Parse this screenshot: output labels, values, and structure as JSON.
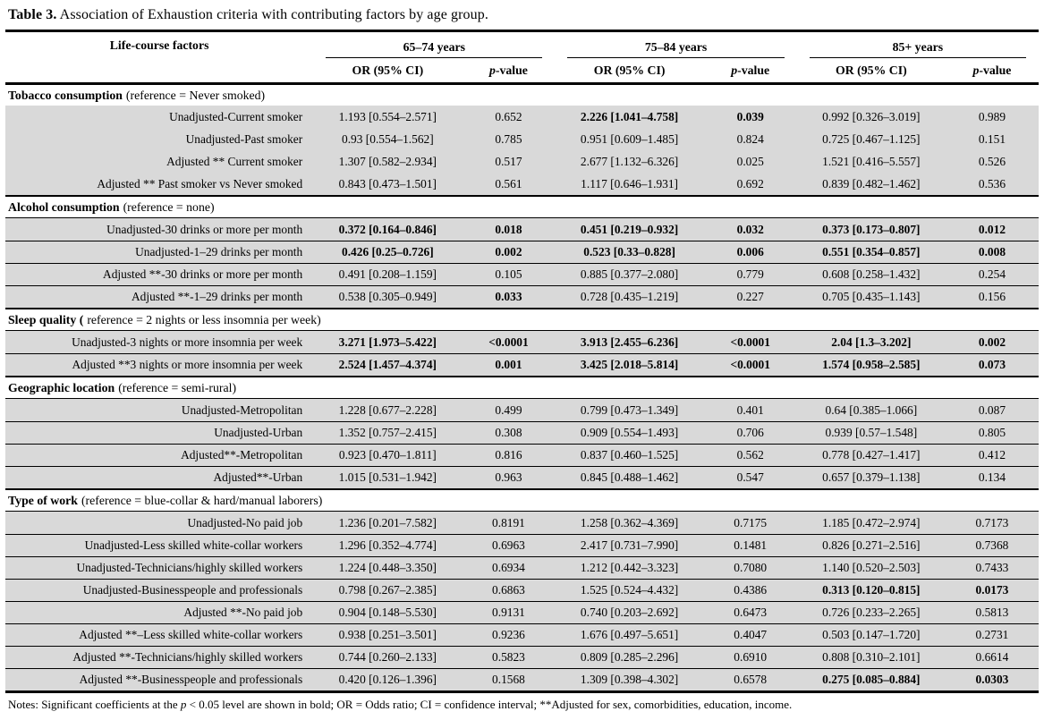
{
  "title": {
    "label": "Table 3.",
    "text": " Association of Exhaustion criteria with contributing factors by age group."
  },
  "header": {
    "factor_col": "Life-course factors",
    "groups": [
      "65–74 years",
      "75–84 years",
      "85+ years"
    ],
    "or_label": "OR (95% CI)",
    "p_italic": "p",
    "p_rest": "-value"
  },
  "sections": [
    {
      "name": "Tobacco consumption",
      "reference": "(reference = Never smoked)",
      "dividers": false,
      "rows": [
        {
          "label": "Unadjusted-Current smoker",
          "cells": [
            {
              "v": "1.193 [0.554–2.571]",
              "bold": false
            },
            {
              "v": "0.652",
              "bold": false
            },
            {
              "v": "2.226 [1.041–4.758]",
              "bold": true
            },
            {
              "v": "0.039",
              "bold": true
            },
            {
              "v": "0.992 [0.326–3.019]",
              "bold": false
            },
            {
              "v": "0.989",
              "bold": false
            }
          ]
        },
        {
          "label": "Unadjusted-Past smoker",
          "cells": [
            {
              "v": "0.93 [0.554–1.562]",
              "bold": false
            },
            {
              "v": "0.785",
              "bold": false
            },
            {
              "v": "0.951 [0.609–1.485]",
              "bold": false
            },
            {
              "v": "0.824",
              "bold": false
            },
            {
              "v": "0.725 [0.467–1.125]",
              "bold": false
            },
            {
              "v": "0.151",
              "bold": false
            }
          ]
        },
        {
          "label": "Adjusted ** Current smoker",
          "cells": [
            {
              "v": "1.307 [0.582–2.934]",
              "bold": false
            },
            {
              "v": "0.517",
              "bold": false
            },
            {
              "v": "2.677 [1.132–6.326]",
              "bold": false
            },
            {
              "v": "0.025",
              "bold": false
            },
            {
              "v": "1.521 [0.416–5.557]",
              "bold": false
            },
            {
              "v": "0.526",
              "bold": false
            }
          ]
        },
        {
          "label": "Adjusted ** Past smoker vs Never smoked",
          "cells": [
            {
              "v": "0.843 [0.473–1.501]",
              "bold": false
            },
            {
              "v": "0.561",
              "bold": false
            },
            {
              "v": "1.117 [0.646–1.931]",
              "bold": false
            },
            {
              "v": "0.692",
              "bold": false
            },
            {
              "v": "0.839 [0.482–1.462]",
              "bold": false
            },
            {
              "v": "0.536",
              "bold": false
            }
          ]
        }
      ]
    },
    {
      "name": "Alcohol consumption",
      "reference": "(reference = none)",
      "dividers": true,
      "rows": [
        {
          "label": "Unadjusted-30 drinks or more per month",
          "cells": [
            {
              "v": "0.372 [0.164–0.846]",
              "bold": true
            },
            {
              "v": "0.018",
              "bold": true
            },
            {
              "v": "0.451 [0.219–0.932]",
              "bold": true
            },
            {
              "v": "0.032",
              "bold": true
            },
            {
              "v": "0.373 [0.173–0.807]",
              "bold": true
            },
            {
              "v": "0.012",
              "bold": true
            }
          ]
        },
        {
          "label": "Unadjusted-1–29 drinks per month",
          "cells": [
            {
              "v": "0.426 [0.25–0.726]",
              "bold": true
            },
            {
              "v": "0.002",
              "bold": true
            },
            {
              "v": "0.523 [0.33–0.828]",
              "bold": true
            },
            {
              "v": "0.006",
              "bold": true
            },
            {
              "v": "0.551 [0.354–0.857]",
              "bold": true
            },
            {
              "v": "0.008",
              "bold": true
            }
          ]
        },
        {
          "label": "Adjusted **-30 drinks or more per month",
          "cells": [
            {
              "v": "0.491 [0.208–1.159]",
              "bold": false
            },
            {
              "v": "0.105",
              "bold": false
            },
            {
              "v": "0.885 [0.377–2.080]",
              "bold": false
            },
            {
              "v": "0.779",
              "bold": false
            },
            {
              "v": "0.608 [0.258–1.432]",
              "bold": false
            },
            {
              "v": "0.254",
              "bold": false
            }
          ]
        },
        {
          "label": "Adjusted **-1–29 drinks per month",
          "cells": [
            {
              "v": "0.538 [0.305–0.949]",
              "bold": false
            },
            {
              "v": "0.033",
              "bold": true
            },
            {
              "v": "0.728 [0.435–1.219]",
              "bold": false
            },
            {
              "v": "0.227",
              "bold": false
            },
            {
              "v": "0.705 [0.435–1.143]",
              "bold": false
            },
            {
              "v": "0.156",
              "bold": false
            }
          ]
        }
      ]
    },
    {
      "name": "Sleep quality (",
      "reference": "reference = 2 nights or less insomnia per week)",
      "dividers": true,
      "rows": [
        {
          "label": "Unadjusted-3 nights or more insomnia per week",
          "cells": [
            {
              "v": "3.271 [1.973–5.422]",
              "bold": true
            },
            {
              "v": "<0.0001",
              "bold": true
            },
            {
              "v": "3.913 [2.455–6.236]",
              "bold": true
            },
            {
              "v": "<0.0001",
              "bold": true
            },
            {
              "v": "2.04 [1.3–3.202]",
              "bold": true
            },
            {
              "v": "0.002",
              "bold": true
            }
          ]
        },
        {
          "label": "Adjusted **3 nights or more insomnia per week",
          "cells": [
            {
              "v": "2.524 [1.457–4.374]",
              "bold": true
            },
            {
              "v": "0.001",
              "bold": true
            },
            {
              "v": "3.425 [2.018–5.814]",
              "bold": true
            },
            {
              "v": "<0.0001",
              "bold": true
            },
            {
              "v": "1.574 [0.958–2.585]",
              "bold": true
            },
            {
              "v": "0.073",
              "bold": true
            }
          ]
        }
      ]
    },
    {
      "name": "Geographic location",
      "reference": "(reference = semi-rural)",
      "dividers": true,
      "rows": [
        {
          "label": "Unadjusted-Metropolitan",
          "cells": [
            {
              "v": "1.228 [0.677–2.228]",
              "bold": false
            },
            {
              "v": "0.499",
              "bold": false
            },
            {
              "v": "0.799 [0.473–1.349]",
              "bold": false
            },
            {
              "v": "0.401",
              "bold": false
            },
            {
              "v": "0.64 [0.385–1.066]",
              "bold": false
            },
            {
              "v": "0.087",
              "bold": false
            }
          ]
        },
        {
          "label": "Unadjusted-Urban",
          "cells": [
            {
              "v": "1.352 [0.757–2.415]",
              "bold": false
            },
            {
              "v": "0.308",
              "bold": false
            },
            {
              "v": "0.909 [0.554–1.493]",
              "bold": false
            },
            {
              "v": "0.706",
              "bold": false
            },
            {
              "v": "0.939 [0.57–1.548]",
              "bold": false
            },
            {
              "v": "0.805",
              "bold": false
            }
          ]
        },
        {
          "label": "Adjusted**-Metropolitan",
          "cells": [
            {
              "v": "0.923 [0.470–1.811]",
              "bold": false
            },
            {
              "v": "0.816",
              "bold": false
            },
            {
              "v": "0.837 [0.460–1.525]",
              "bold": false
            },
            {
              "v": "0.562",
              "bold": false
            },
            {
              "v": "0.778 [0.427–1.417]",
              "bold": false
            },
            {
              "v": "0.412",
              "bold": false
            }
          ]
        },
        {
          "label": "Adjusted**-Urban",
          "cells": [
            {
              "v": "1.015 [0.531–1.942]",
              "bold": false
            },
            {
              "v": "0.963",
              "bold": false
            },
            {
              "v": "0.845 [0.488–1.462]",
              "bold": false
            },
            {
              "v": "0.547",
              "bold": false
            },
            {
              "v": "0.657 [0.379–1.138]",
              "bold": false
            },
            {
              "v": "0.134",
              "bold": false
            }
          ]
        }
      ]
    },
    {
      "name": "Type of work",
      "reference": "(reference = blue-collar & hard/manual laborers)",
      "dividers": true,
      "rows": [
        {
          "label": "Unadjusted-No paid job",
          "cells": [
            {
              "v": "1.236 [0.201–7.582]",
              "bold": false
            },
            {
              "v": "0.8191",
              "bold": false
            },
            {
              "v": "1.258 [0.362–4.369]",
              "bold": false
            },
            {
              "v": "0.7175",
              "bold": false
            },
            {
              "v": "1.185 [0.472–2.974]",
              "bold": false
            },
            {
              "v": "0.7173",
              "bold": false
            }
          ]
        },
        {
          "label": "Unadjusted-Less skilled white-collar workers",
          "cells": [
            {
              "v": "1.296 [0.352–4.774]",
              "bold": false
            },
            {
              "v": "0.6963",
              "bold": false
            },
            {
              "v": "2.417 [0.731–7.990]",
              "bold": false
            },
            {
              "v": "0.1481",
              "bold": false
            },
            {
              "v": "0.826 [0.271–2.516]",
              "bold": false
            },
            {
              "v": "0.7368",
              "bold": false
            }
          ]
        },
        {
          "label": "Unadjusted-Technicians/highly skilled workers",
          "cells": [
            {
              "v": "1.224 [0.448–3.350]",
              "bold": false
            },
            {
              "v": "0.6934",
              "bold": false
            },
            {
              "v": "1.212 [0.442–3.323]",
              "bold": false
            },
            {
              "v": "0.7080",
              "bold": false
            },
            {
              "v": "1.140 [0.520–2.503]",
              "bold": false
            },
            {
              "v": "0.7433",
              "bold": false
            }
          ]
        },
        {
          "label": "Unadjusted-Businesspeople and professionals",
          "cells": [
            {
              "v": "0.798 [0.267–2.385]",
              "bold": false
            },
            {
              "v": "0.6863",
              "bold": false
            },
            {
              "v": "1.525 [0.524–4.432]",
              "bold": false
            },
            {
              "v": "0.4386",
              "bold": false
            },
            {
              "v": "0.313 [0.120–0.815]",
              "bold": true
            },
            {
              "v": "0.0173",
              "bold": true
            }
          ]
        },
        {
          "label": "Adjusted **-No paid job",
          "cells": [
            {
              "v": "0.904 [0.148–5.530]",
              "bold": false
            },
            {
              "v": "0.9131",
              "bold": false
            },
            {
              "v": "0.740 [0.203–2.692]",
              "bold": false
            },
            {
              "v": "0.6473",
              "bold": false
            },
            {
              "v": "0.726 [0.233–2.265]",
              "bold": false
            },
            {
              "v": "0.5813",
              "bold": false
            }
          ]
        },
        {
          "label": "Adjusted **–Less skilled white-collar workers",
          "cells": [
            {
              "v": "0.938 [0.251–3.501]",
              "bold": false
            },
            {
              "v": "0.9236",
              "bold": false
            },
            {
              "v": "1.676 [0.497–5.651]",
              "bold": false
            },
            {
              "v": "0.4047",
              "bold": false
            },
            {
              "v": "0.503 [0.147–1.720]",
              "bold": false
            },
            {
              "v": "0.2731",
              "bold": false
            }
          ]
        },
        {
          "label": "Adjusted **-Technicians/highly skilled workers",
          "cells": [
            {
              "v": "0.744 [0.260–2.133]",
              "bold": false
            },
            {
              "v": "0.5823",
              "bold": false
            },
            {
              "v": "0.809 [0.285–2.296]",
              "bold": false
            },
            {
              "v": "0.6910",
              "bold": false
            },
            {
              "v": "0.808 [0.310–2.101]",
              "bold": false
            },
            {
              "v": "0.6614",
              "bold": false
            }
          ]
        },
        {
          "label": "Adjusted **-Businesspeople and professionals",
          "cells": [
            {
              "v": "0.420 [0.126–1.396]",
              "bold": false
            },
            {
              "v": "0.1568",
              "bold": false
            },
            {
              "v": "1.309 [0.398–4.302]",
              "bold": false
            },
            {
              "v": "0.6578",
              "bold": false
            },
            {
              "v": "0.275 [0.085–0.884]",
              "bold": true
            },
            {
              "v": "0.0303",
              "bold": true
            }
          ]
        }
      ]
    }
  ],
  "notes": {
    "pre": "Notes: Significant coefficients at the ",
    "italic": "p",
    "post": " < 0.05 level are shown in bold; OR = Odds ratio; CI = confidence interval; **Adjusted for sex, comorbidities, education, income."
  }
}
